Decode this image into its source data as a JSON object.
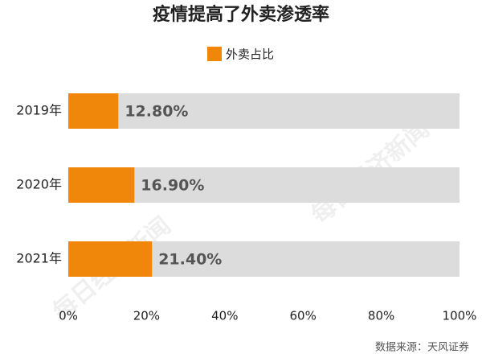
{
  "chart_data": {
    "type": "bar",
    "title": "疫情提高了外卖渗透率",
    "categories": [
      "2019年",
      "2020年",
      "2021年"
    ],
    "series": [
      {
        "name": "外卖占比",
        "color": "#f0870a",
        "values": [
          12.8,
          16.9,
          21.4
        ],
        "value_labels": [
          "12.80%",
          "16.90%",
          "21.40%"
        ]
      }
    ],
    "xlim": [
      0,
      100
    ],
    "xticks": [
      {
        "value": 0,
        "label": "0%"
      },
      {
        "value": 20,
        "label": "20%"
      },
      {
        "value": 40,
        "label": "40%"
      },
      {
        "value": 60,
        "label": "60%"
      },
      {
        "value": 80,
        "label": "80%"
      },
      {
        "value": 100,
        "label": "100%"
      }
    ],
    "source": "数据来源：天风证券",
    "watermark": "每日经济新闻"
  }
}
